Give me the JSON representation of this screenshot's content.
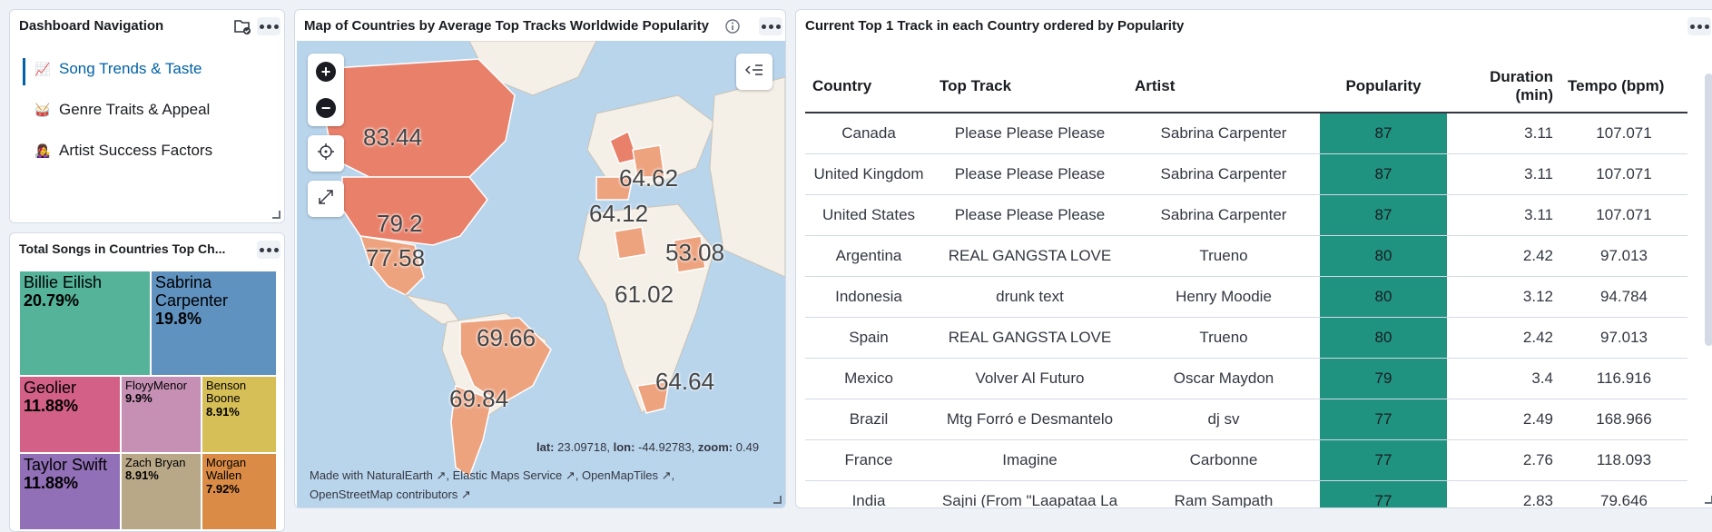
{
  "nav_panel": {
    "title": "Dashboard Navigation",
    "items": [
      {
        "emoji": "📈",
        "label": "Song Trends & Taste",
        "active": true
      },
      {
        "emoji": "🥁",
        "label": "Genre Traits & Appeal",
        "active": false
      },
      {
        "emoji": "👩‍🎤",
        "label": "Artist Success Factors",
        "active": false
      }
    ]
  },
  "treemap_panel": {
    "title": "Total Songs in Countries Top Ch...",
    "tiles": [
      {
        "name": "Billie Eilish",
        "pct": "20.79%",
        "color": "#54b399"
      },
      {
        "name": "Sabrina Carpenter",
        "pct": "19.8%",
        "color": "#6092c0"
      },
      {
        "name": "Geolier",
        "pct": "11.88%",
        "color": "#d36086"
      },
      {
        "name": "FloyyMenor",
        "pct": "9.9%",
        "color": "#c690b5"
      },
      {
        "name": "Benson Boone",
        "pct": "8.91%",
        "color": "#d6bf57"
      },
      {
        "name": "Taylor Swift",
        "pct": "11.88%",
        "color": "#9170b8"
      },
      {
        "name": "Zach Bryan",
        "pct": "8.91%",
        "color": "#b9a888"
      },
      {
        "name": "Morgan Wallen",
        "pct": "7.92%",
        "color": "#da8b45"
      }
    ]
  },
  "map_panel": {
    "title": "Map of Countries by Average Top Tracks Worldwide Popularity",
    "info_icon": "info-icon",
    "labels": [
      "83.44",
      "79.2",
      "77.58",
      "64.62",
      "64.12",
      "53.08",
      "61.02",
      "69.66",
      "69.84",
      "64.64"
    ],
    "coords": {
      "lat_label": "lat:",
      "lat": "23.09718",
      "lon_label": "lon:",
      "lon": "-44.92783",
      "zoom_label": "zoom:",
      "zoom": "0.49"
    },
    "attribution": [
      "Made with NaturalEarth",
      "Elastic Maps Service",
      "OpenMapTiles",
      "OpenStreetMap contributors"
    ],
    "colors": {
      "ocean": "#b9d5ec",
      "land": "#f4efe7",
      "choropleth_high": "#e8806a",
      "choropleth_mid": "#eea37f"
    }
  },
  "table_panel": {
    "title": "Current Top 1 Track in each Country ordered by Popularity",
    "headers": [
      "Country",
      "Top Track",
      "Artist",
      "Popularity",
      "Duration (min)",
      "Tempo (bpm)"
    ],
    "rows": [
      [
        "Canada",
        "Please Please Please",
        "Sabrina Carpenter",
        "87",
        "3.11",
        "107.071"
      ],
      [
        "United Kingdom",
        "Please Please Please",
        "Sabrina Carpenter",
        "87",
        "3.11",
        "107.071"
      ],
      [
        "United States",
        "Please Please Please",
        "Sabrina Carpenter",
        "87",
        "3.11",
        "107.071"
      ],
      [
        "Argentina",
        "REAL GANGSTA LOVE",
        "Trueno",
        "80",
        "2.42",
        "97.013"
      ],
      [
        "Indonesia",
        "drunk text",
        "Henry Moodie",
        "80",
        "3.12",
        "94.784"
      ],
      [
        "Spain",
        "REAL GANGSTA LOVE",
        "Trueno",
        "80",
        "2.42",
        "97.013"
      ],
      [
        "Mexico",
        "Volver Al Futuro",
        "Oscar Maydon",
        "79",
        "3.4",
        "116.916"
      ],
      [
        "Brazil",
        "Mtg Forró e Desmantelo",
        "dj sv",
        "77",
        "2.49",
        "168.966"
      ],
      [
        "France",
        "Imagine",
        "Carbonne",
        "77",
        "2.76",
        "118.093"
      ],
      [
        "India",
        "Sajni (From \"Laapataa La",
        "Ram Sampath",
        "77",
        "2.83",
        "79.646"
      ]
    ],
    "popularity_color": "#209280"
  }
}
